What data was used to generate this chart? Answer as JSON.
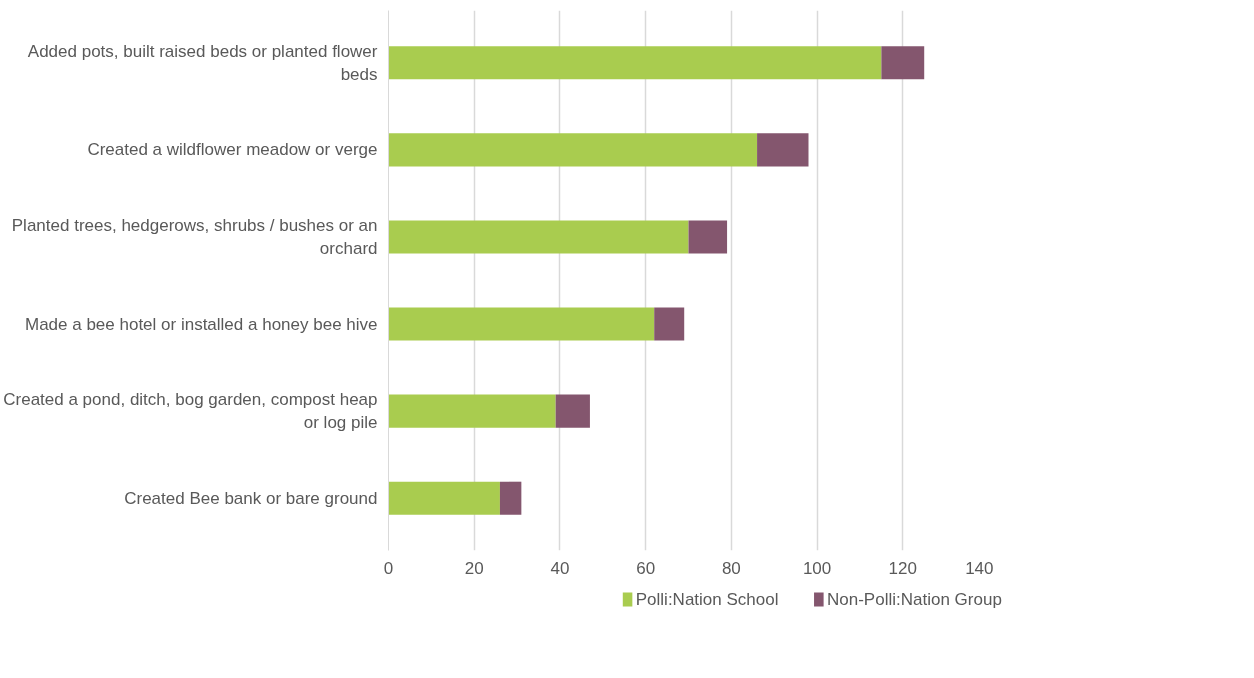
{
  "chart_data": {
    "type": "bar",
    "orientation": "horizontal",
    "stacked": true,
    "categories": [
      "Added pots, built raised beds or planted flower beds",
      "Created a wildflower meadow or verge",
      "Planted trees, hedgerows, shrubs / bushes or an orchard",
      "Made a bee hotel or installed a honey bee hive",
      "Created a pond, ditch, bog garden, compost heap or log pile",
      "Created Bee bank or bare ground"
    ],
    "series": [
      {
        "name": "Polli:Nation School",
        "color": "#a9cc4f",
        "values": [
          115,
          86,
          70,
          62,
          39,
          26
        ]
      },
      {
        "name": "Non-Polli:Nation Group",
        "color": "#84566e",
        "values": [
          10,
          12,
          9,
          7,
          8,
          5
        ]
      }
    ],
    "xlim": [
      0,
      140
    ],
    "xticks": [
      0,
      20,
      40,
      60,
      80,
      100,
      120,
      140
    ],
    "grid": "x",
    "legend": "bottom"
  }
}
